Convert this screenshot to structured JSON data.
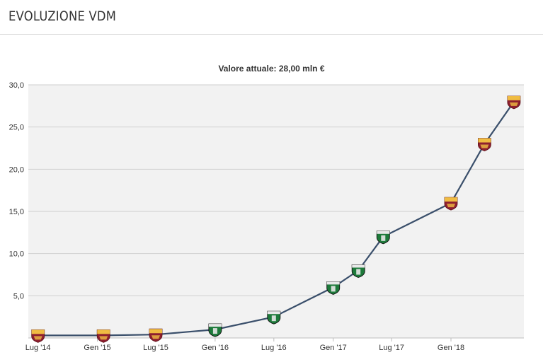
{
  "header": {
    "title": "EVOLUZIONE VDM"
  },
  "chart_data": {
    "type": "line",
    "title": "Valore attuale: 28,00 mln €",
    "xlabel": "",
    "ylabel": "",
    "ylim": [
      0,
      30
    ],
    "y_ticks": [
      "5,0",
      "10,0",
      "15,0",
      "20,0",
      "25,0",
      "30,0"
    ],
    "y_tick_values": [
      5,
      10,
      15,
      20,
      25,
      30
    ],
    "x_tick_labels": [
      "Lug '14",
      "Gen '15",
      "Lug '15",
      "Gen '16",
      "Lug '16",
      "Gen '17",
      "Lug '17",
      "Gen '18"
    ],
    "x_tick_dates": [
      "2014-07-01",
      "2015-01-01",
      "2015-07-01",
      "2016-01-01",
      "2016-07-01",
      "2017-01-01",
      "2017-07-01",
      "2018-01-01"
    ],
    "x_range": [
      "2014-06-01",
      "2018-08-15"
    ],
    "grid": true,
    "line_color": "#3a4f6b",
    "plot_background": "#f2f2f2",
    "series": [
      {
        "points": [
          {
            "date": "2014-07-01",
            "value": 0.3,
            "club": "roma"
          },
          {
            "date": "2015-01-20",
            "value": 0.3,
            "club": "roma"
          },
          {
            "date": "2015-07-01",
            "value": 0.4,
            "club": "roma"
          },
          {
            "date": "2016-01-01",
            "value": 1.0,
            "club": "sassuolo"
          },
          {
            "date": "2016-07-01",
            "value": 2.5,
            "club": "sassuolo"
          },
          {
            "date": "2017-01-01",
            "value": 6.0,
            "club": "sassuolo"
          },
          {
            "date": "2017-03-20",
            "value": 8.0,
            "club": "sassuolo"
          },
          {
            "date": "2017-06-05",
            "value": 12.0,
            "club": "sassuolo"
          },
          {
            "date": "2018-01-01",
            "value": 16.0,
            "club": "roma"
          },
          {
            "date": "2018-04-15",
            "value": 23.0,
            "club": "roma"
          },
          {
            "date": "2018-07-15",
            "value": 28.0,
            "club": "roma"
          }
        ]
      }
    ]
  },
  "badge_colors": {
    "roma_primary": "#8e1f2f",
    "roma_secondary": "#f0bc42",
    "sassuolo_primary": "#1d7a3a",
    "sassuolo_secondary": "#111111"
  }
}
